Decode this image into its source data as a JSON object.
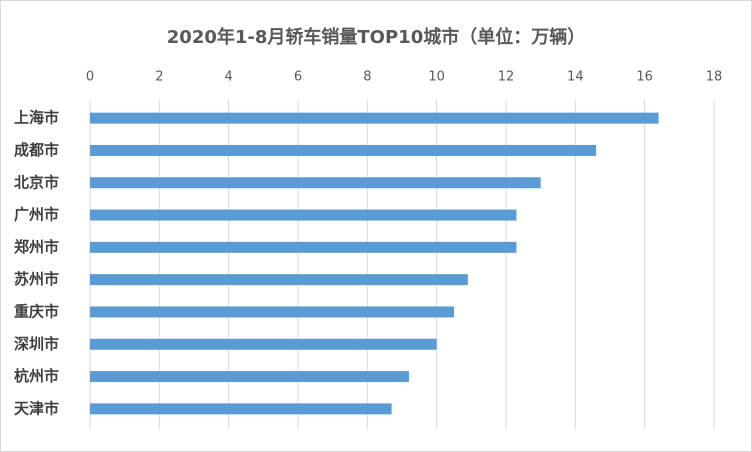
{
  "chart_data": {
    "type": "bar",
    "orientation": "horizontal",
    "title": "2020年1-8月轿车销量TOP10城市（单位：万辆）",
    "categories": [
      "上海市",
      "成都市",
      "北京市",
      "广州市",
      "郑州市",
      "苏州市",
      "重庆市",
      "深圳市",
      "杭州市",
      "天津市"
    ],
    "values": [
      16.4,
      14.6,
      13.0,
      12.3,
      12.3,
      10.9,
      10.5,
      10.0,
      9.2,
      8.7
    ],
    "color": "#5b9bd5",
    "xlim": [
      0,
      18
    ],
    "xticks": [
      0,
      2,
      4,
      6,
      8,
      10,
      12,
      14,
      16,
      18
    ],
    "grid": true
  }
}
